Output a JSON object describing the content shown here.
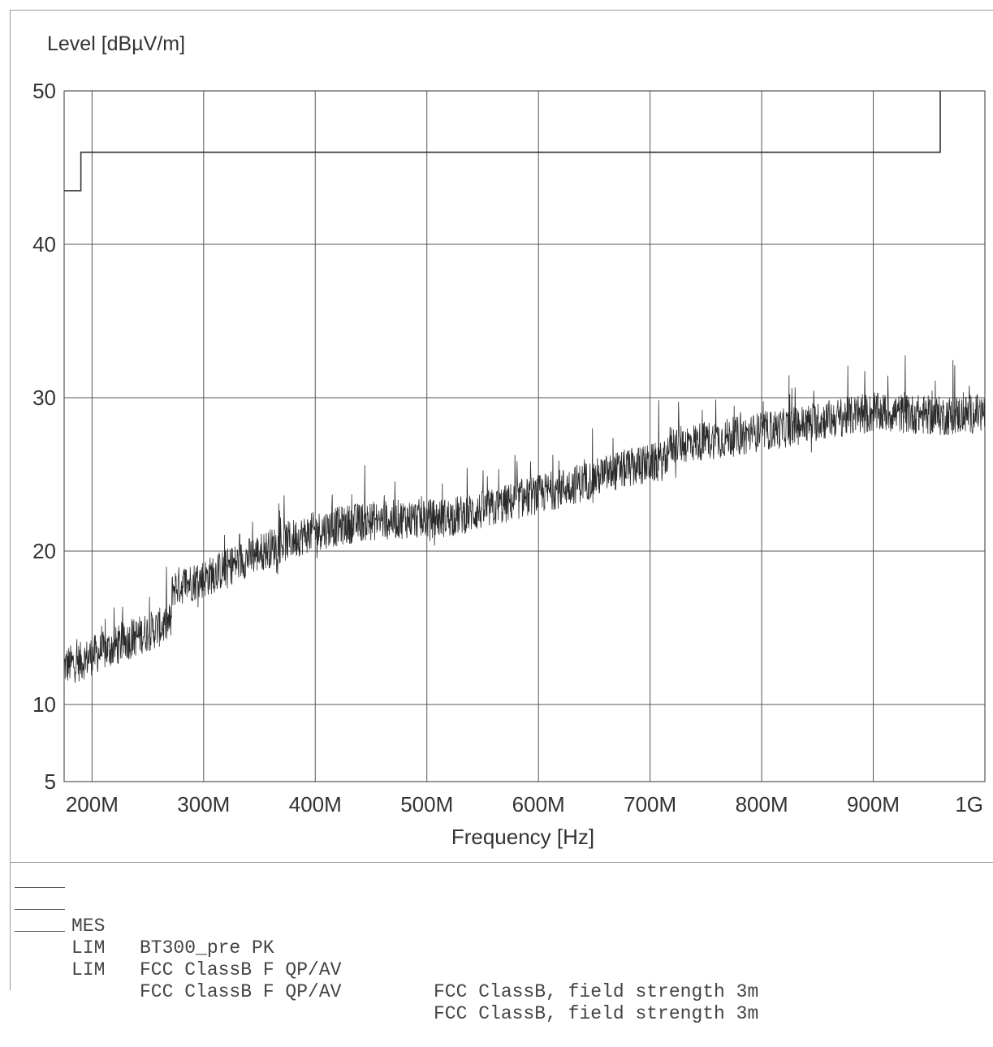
{
  "chart_data": {
    "type": "line",
    "ylabel": "Level [dBµV/m]",
    "xlabel": "Frequency [Hz]",
    "ylim": [
      5,
      50
    ],
    "xlim": [
      175,
      1000
    ],
    "x_unit": "MHz",
    "y_ticks": [
      {
        "value": 50,
        "label": "50"
      },
      {
        "value": 40,
        "label": "40"
      },
      {
        "value": 30,
        "label": "30"
      },
      {
        "value": 20,
        "label": "20"
      },
      {
        "value": 10,
        "label": "10"
      },
      {
        "value": 5,
        "label": "5"
      }
    ],
    "x_ticks": [
      {
        "value": 200,
        "label": "200M"
      },
      {
        "value": 300,
        "label": "300M"
      },
      {
        "value": 400,
        "label": "400M"
      },
      {
        "value": 500,
        "label": "500M"
      },
      {
        "value": 600,
        "label": "600M"
      },
      {
        "value": 700,
        "label": "700M"
      },
      {
        "value": 800,
        "label": "800M"
      },
      {
        "value": 900,
        "label": "900M"
      },
      {
        "value": 1000,
        "label": "1G"
      }
    ],
    "grid": true,
    "series": [
      {
        "name": "BT300_pre PK",
        "style": "noisy",
        "color": "#2a2a2a",
        "x": [
          175,
          190,
          200,
          215,
          230,
          245,
          260,
          271,
          272,
          285,
          300,
          320,
          340,
          360,
          380,
          400,
          420,
          440,
          460,
          480,
          500,
          520,
          540,
          560,
          580,
          600,
          620,
          640,
          660,
          680,
          700,
          715,
          716,
          740,
          760,
          780,
          800,
          820,
          840,
          860,
          880,
          900,
          920,
          940,
          960,
          980,
          1000
        ],
        "values": [
          12.5,
          12.8,
          13.2,
          13.6,
          14.1,
          14.6,
          15.0,
          15.4,
          17.6,
          17.9,
          18.2,
          18.9,
          19.6,
          20.2,
          20.8,
          21.3,
          21.6,
          21.9,
          22.0,
          22.1,
          22.1,
          22.2,
          22.5,
          22.8,
          23.3,
          23.7,
          24.1,
          24.5,
          25.0,
          25.4,
          25.7,
          25.9,
          26.9,
          27.1,
          27.3,
          27.5,
          27.8,
          28.0,
          28.3,
          28.6,
          28.8,
          29.0,
          29.0,
          28.9,
          28.8,
          28.9,
          29.0
        ]
      },
      {
        "name": "FCC ClassB F QP/AV",
        "style": "step",
        "color": "#333333",
        "x": [
          175,
          190,
          190,
          960,
          960
        ],
        "values": [
          43.5,
          43.5,
          46.0,
          46.0,
          50
        ]
      }
    ]
  },
  "legend": [
    {
      "code": "MES",
      "name": "BT300_pre PK",
      "desc": ""
    },
    {
      "code": "LIM",
      "name": "FCC ClassB F QP/AV",
      "desc": "FCC ClassB, field strength 3m"
    },
    {
      "code": "LIM",
      "name": "FCC ClassB F QP/AV",
      "desc": "FCC ClassB, field strength 3m"
    }
  ]
}
